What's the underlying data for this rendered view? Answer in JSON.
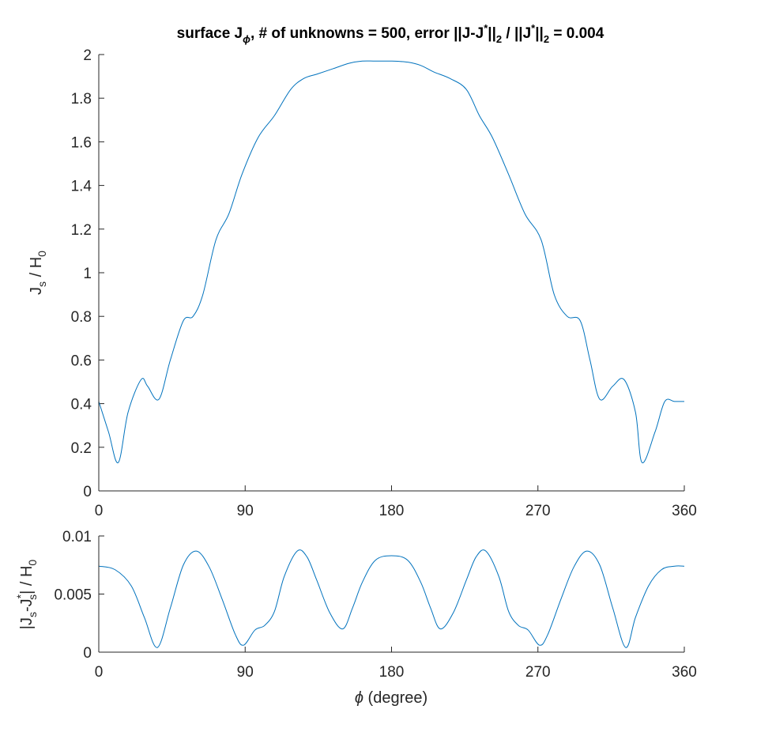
{
  "figure": {
    "title": {
      "prefix": "surface J",
      "phi_sub": "ϕ",
      "part2": ", # of unknowns = 500, error ||J-J",
      "star1": "*",
      "sub2a": "2",
      "part3": " / ||J",
      "star2": "*",
      "part4": "||",
      "sub2b": "2",
      "part5": " = 0.004"
    },
    "top_ylabel": {
      "j": "J",
      "s": "s",
      "mid": " / H",
      "zero": "0"
    },
    "bottom_ylabel": {
      "a": "|J",
      "s1": "s",
      "b": "-J",
      "star": "*",
      "s2": "s",
      "c": "| / H",
      "zero": "0"
    },
    "xlabel": {
      "phi": "ϕ",
      "rest": " (degree)"
    },
    "line_color": "#0072BD"
  },
  "chart_data": [
    {
      "type": "line",
      "ylabel": "Js / H0",
      "xlim": [
        0,
        360
      ],
      "ylim": [
        0,
        2
      ],
      "xticks": [
        "0",
        "90",
        "180",
        "270",
        "360"
      ],
      "yticks": [
        "0",
        "0.2",
        "0.4",
        "0.6",
        "0.8",
        "1",
        "1.2",
        "1.4",
        "1.6",
        "1.8",
        "2"
      ],
      "grid": false,
      "x": [
        0,
        6,
        12,
        18,
        26,
        30,
        37,
        44,
        52,
        58,
        64,
        72,
        80,
        88,
        98,
        108,
        118,
        126,
        134,
        144,
        154,
        162,
        170,
        180,
        190,
        198,
        206,
        216,
        226,
        234,
        242,
        252,
        262,
        272,
        280,
        288,
        296,
        302,
        308,
        316,
        323,
        330,
        334,
        342,
        348,
        354,
        360
      ],
      "y": [
        0.41,
        0.27,
        0.13,
        0.36,
        0.51,
        0.48,
        0.42,
        0.6,
        0.78,
        0.8,
        0.9,
        1.15,
        1.27,
        1.45,
        1.62,
        1.72,
        1.84,
        1.89,
        1.91,
        1.935,
        1.96,
        1.97,
        1.97,
        1.97,
        1.965,
        1.95,
        1.92,
        1.89,
        1.84,
        1.72,
        1.62,
        1.45,
        1.27,
        1.15,
        0.9,
        0.8,
        0.78,
        0.6,
        0.42,
        0.48,
        0.51,
        0.36,
        0.13,
        0.27,
        0.41,
        0.41,
        0.41
      ]
    },
    {
      "type": "line",
      "ylabel": "|Js-Js*| / H0",
      "xlabel": "ϕ (degree)",
      "xlim": [
        0,
        360
      ],
      "ylim": [
        0,
        0.01
      ],
      "xticks": [
        "0",
        "90",
        "180",
        "270",
        "360"
      ],
      "yticks": [
        "0",
        "0.005",
        "0.01"
      ],
      "grid": false,
      "x": [
        0,
        10,
        20,
        28,
        36,
        44,
        52,
        60,
        68,
        76,
        84,
        89,
        96,
        102,
        108,
        114,
        122,
        128,
        134,
        142,
        150,
        156,
        162,
        170,
        180,
        190,
        198,
        204,
        210,
        218,
        226,
        232,
        238,
        246,
        252,
        258,
        264,
        271,
        276,
        284,
        292,
        300,
        308,
        316,
        324,
        330,
        338,
        346,
        354,
        360
      ],
      "y": [
        0.0074,
        0.0071,
        0.0057,
        0.003,
        0.0004,
        0.0038,
        0.0075,
        0.0087,
        0.0073,
        0.0045,
        0.0015,
        0.0006,
        0.0019,
        0.0023,
        0.0035,
        0.0065,
        0.0087,
        0.0082,
        0.0062,
        0.0034,
        0.002,
        0.0038,
        0.006,
        0.0079,
        0.0083,
        0.0079,
        0.006,
        0.0038,
        0.002,
        0.0034,
        0.0062,
        0.0082,
        0.0087,
        0.0065,
        0.0035,
        0.0023,
        0.0019,
        0.0006,
        0.0015,
        0.0045,
        0.0073,
        0.0087,
        0.0075,
        0.0038,
        0.0004,
        0.003,
        0.0057,
        0.0071,
        0.0074,
        0.0074
      ]
    }
  ]
}
